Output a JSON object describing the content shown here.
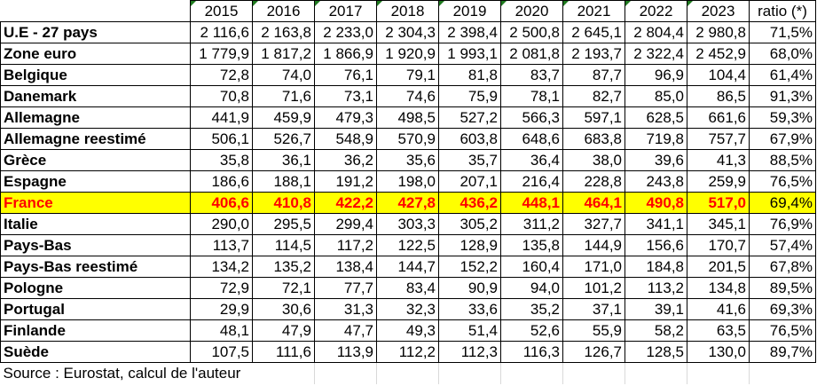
{
  "headers": [
    "2015",
    "2016",
    "2017",
    "2018",
    "2019",
    "2020",
    "2021",
    "2022",
    "2023"
  ],
  "ratio_header": "ratio (*)",
  "rows": [
    {
      "label": "U.E - 27 pays",
      "values": [
        "2 116,6",
        "2 163,8",
        "2 233,0",
        "2 304,3",
        "2 398,4",
        "2 500,8",
        "2 645,1",
        "2 804,4",
        "2 980,8"
      ],
      "ratio": "71,5%",
      "highlight": false
    },
    {
      "label": "Zone euro",
      "values": [
        "1 779,9",
        "1 817,2",
        "1 866,9",
        "1 920,9",
        "1 993,1",
        "2 081,8",
        "2 193,7",
        "2 322,4",
        "2 452,9"
      ],
      "ratio": "68,0%",
      "highlight": false
    },
    {
      "label": "Belgique",
      "values": [
        "72,8",
        "74,0",
        "76,1",
        "79,1",
        "81,8",
        "83,7",
        "87,7",
        "96,9",
        "104,4"
      ],
      "ratio": "61,4%",
      "highlight": false
    },
    {
      "label": "Danemark",
      "values": [
        "70,8",
        "71,6",
        "73,1",
        "74,6",
        "75,9",
        "78,1",
        "82,7",
        "85,0",
        "86,5"
      ],
      "ratio": "91,3%",
      "highlight": false
    },
    {
      "label": "Allemagne",
      "values": [
        "441,9",
        "459,9",
        "479,3",
        "498,5",
        "527,2",
        "566,3",
        "597,1",
        "628,5",
        "661,6"
      ],
      "ratio": "59,3%",
      "highlight": false
    },
    {
      "label": "Allemagne reestimé",
      "values": [
        "506,1",
        "526,7",
        "548,9",
        "570,9",
        "603,8",
        "648,6",
        "683,8",
        "719,8",
        "757,7"
      ],
      "ratio": "67,9%",
      "highlight": false
    },
    {
      "label": "Grèce",
      "values": [
        "35,8",
        "36,1",
        "36,2",
        "35,6",
        "35,7",
        "36,4",
        "38,0",
        "39,6",
        "41,3"
      ],
      "ratio": "88,5%",
      "highlight": false
    },
    {
      "label": "Espagne",
      "values": [
        "186,6",
        "188,1",
        "191,2",
        "198,0",
        "207,1",
        "216,4",
        "228,8",
        "243,8",
        "259,9"
      ],
      "ratio": "76,5%",
      "highlight": false
    },
    {
      "label": "France",
      "values": [
        "406,6",
        "410,8",
        "422,2",
        "427,8",
        "436,2",
        "448,1",
        "464,1",
        "490,8",
        "517,0"
      ],
      "ratio": "69,4%",
      "highlight": true
    },
    {
      "label": "Italie",
      "values": [
        "290,0",
        "295,5",
        "299,4",
        "303,3",
        "305,2",
        "311,2",
        "327,7",
        "341,1",
        "345,1"
      ],
      "ratio": "76,9%",
      "highlight": false
    },
    {
      "label": "Pays-Bas",
      "values": [
        "113,7",
        "114,5",
        "117,2",
        "122,5",
        "128,9",
        "135,8",
        "144,9",
        "156,6",
        "170,7"
      ],
      "ratio": "57,4%",
      "highlight": false
    },
    {
      "label": "Pays-Bas reestimé",
      "values": [
        "134,2",
        "135,2",
        "138,4",
        "144,7",
        "152,2",
        "160,4",
        "171,0",
        "184,8",
        "201,5"
      ],
      "ratio": "67,8%",
      "highlight": false
    },
    {
      "label": "Pologne",
      "values": [
        "72,9",
        "72,1",
        "77,7",
        "83,4",
        "90,9",
        "94,0",
        "101,2",
        "113,2",
        "134,8"
      ],
      "ratio": "89,5%",
      "highlight": false
    },
    {
      "label": "Portugal",
      "values": [
        "29,9",
        "30,6",
        "31,3",
        "32,3",
        "33,6",
        "35,2",
        "37,1",
        "39,1",
        "41,6"
      ],
      "ratio": "69,3%",
      "highlight": false
    },
    {
      "label": "Finlande",
      "values": [
        "48,1",
        "47,9",
        "47,7",
        "49,3",
        "51,4",
        "52,6",
        "55,9",
        "58,2",
        "63,5"
      ],
      "ratio": "76,5%",
      "highlight": false
    },
    {
      "label": "Suède",
      "values": [
        "107,5",
        "111,6",
        "113,9",
        "112,2",
        "112,3",
        "116,3",
        "126,7",
        "128,5",
        "130,0"
      ],
      "ratio": "89,7%",
      "highlight": false
    }
  ],
  "source": "Source : Eurostat, calcul de l'auteur",
  "colors": {
    "highlight_bg": "#ffff00",
    "highlight_text": "#ff0000",
    "header_marker": "#1f7a1f"
  }
}
